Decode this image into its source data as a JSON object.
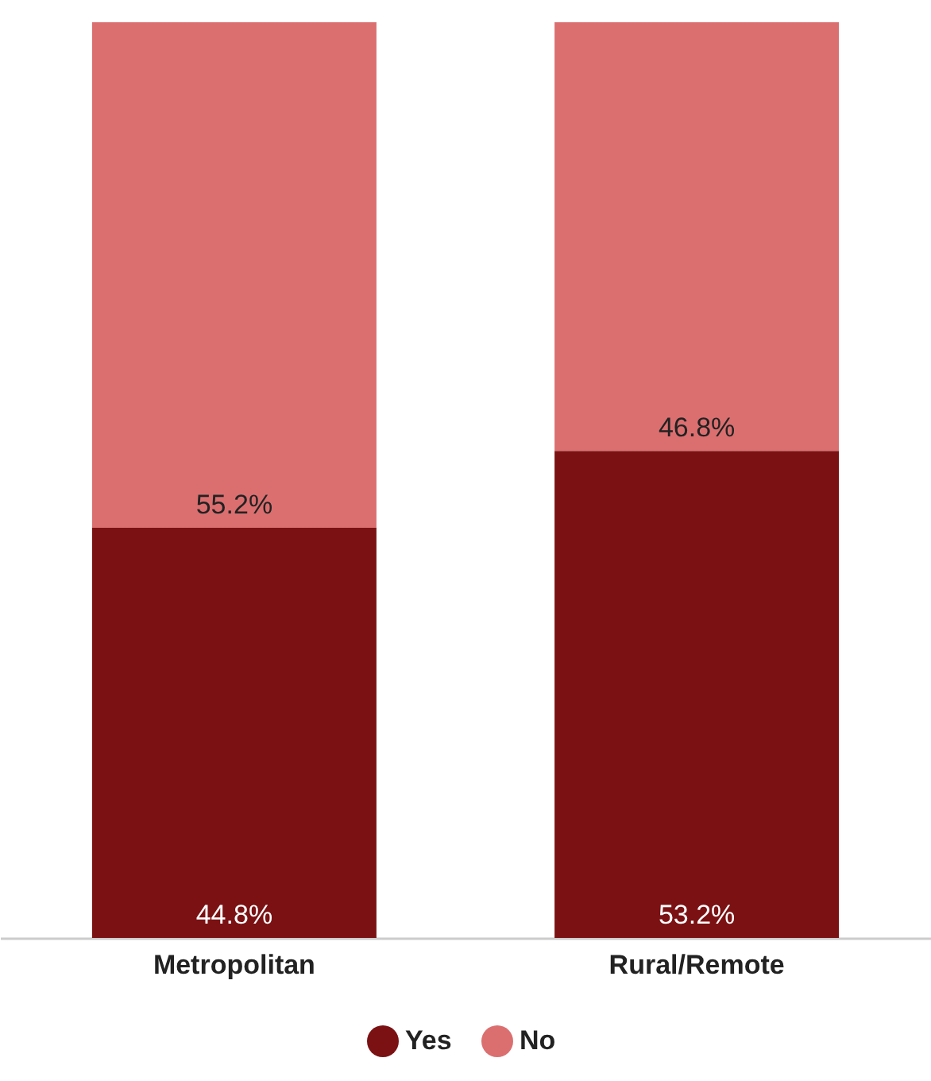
{
  "chart_data": {
    "type": "bar",
    "stacked": true,
    "legend": "bottom",
    "categories": [
      "Metropolitan",
      "Rural/Remote"
    ],
    "series": [
      {
        "name": "Yes",
        "color": "#7b1113",
        "values": [
          44.8,
          53.2
        ],
        "value_labels": [
          "44.8%",
          "53.2%"
        ]
      },
      {
        "name": "No",
        "color": "#db6f70",
        "values": [
          55.2,
          46.8
        ],
        "value_labels": [
          "55.2%",
          "46.8%"
        ]
      }
    ]
  }
}
